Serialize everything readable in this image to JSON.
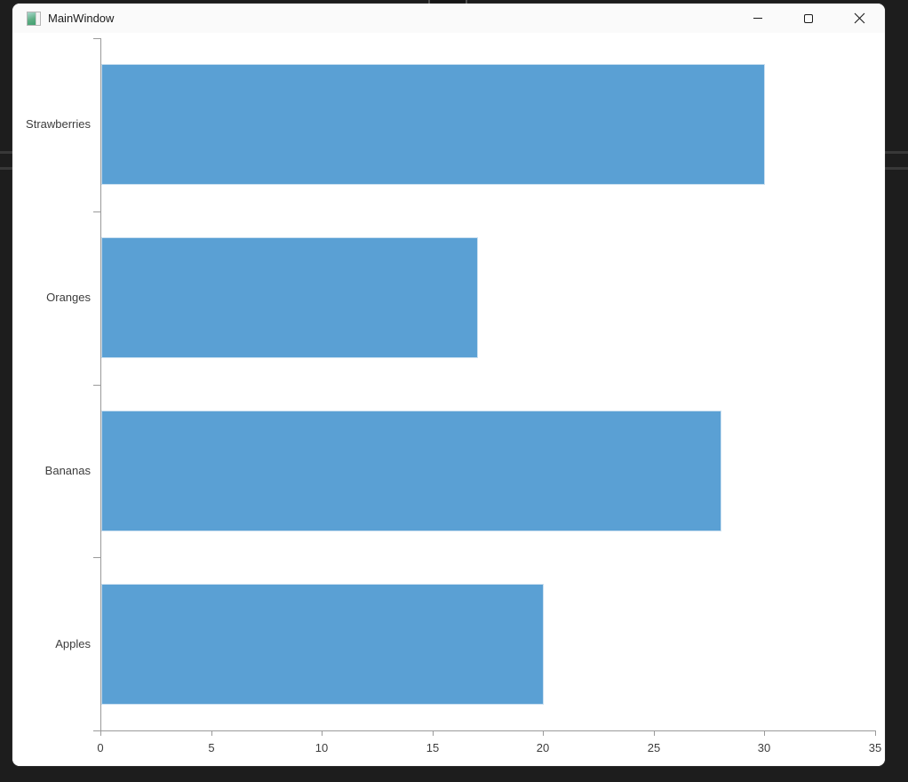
{
  "window": {
    "title": "MainWindow",
    "icons": {
      "app": "window-icon",
      "minimize": "—",
      "maximize": "▢",
      "close": "✕"
    }
  },
  "chart_data": {
    "type": "bar",
    "orientation": "horizontal",
    "title": "",
    "xlabel": "",
    "ylabel": "",
    "categories": [
      "Strawberries",
      "Oranges",
      "Bananas",
      "Apples"
    ],
    "values": [
      30,
      17,
      28,
      20
    ],
    "xlim": [
      0,
      35
    ],
    "x_ticks": [
      0,
      5,
      10,
      15,
      20,
      25,
      30,
      35
    ],
    "grid": false,
    "legend": "none",
    "bar_color": "#5AA0D4",
    "bar_border_color": "#C9DFF0",
    "axis_color": "#9A9A9A",
    "tick_label_color": "#3C3C3C",
    "category_label_color": "#3C3C3C"
  }
}
